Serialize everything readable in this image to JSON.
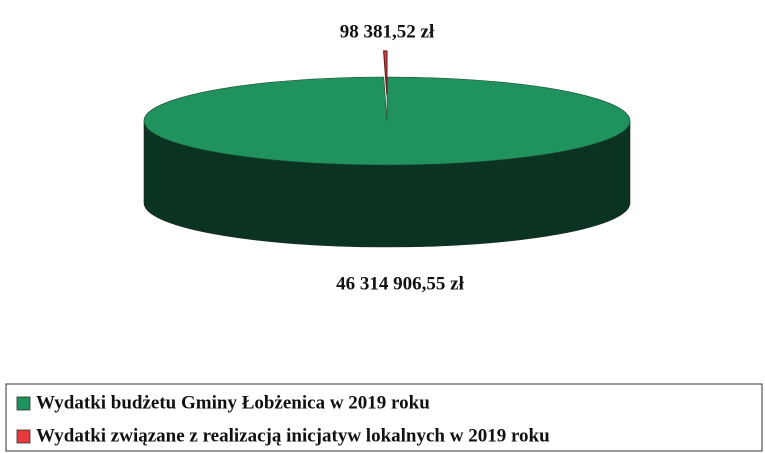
{
  "chart_data": {
    "type": "pie",
    "categories": [
      "Wydatki budżetu Gminy Łobżenica w 2019 roku",
      "Wydatki związane z realizacją  inicjatyw lokalnych w 2019 roku"
    ],
    "values": [
      46314906.55,
      98381.52
    ],
    "value_labels": [
      "46 314 906,55 zł",
      "98 381,52 zł"
    ],
    "colors": [
      "#20925e",
      "#e8393c"
    ],
    "legend": "bottom"
  }
}
